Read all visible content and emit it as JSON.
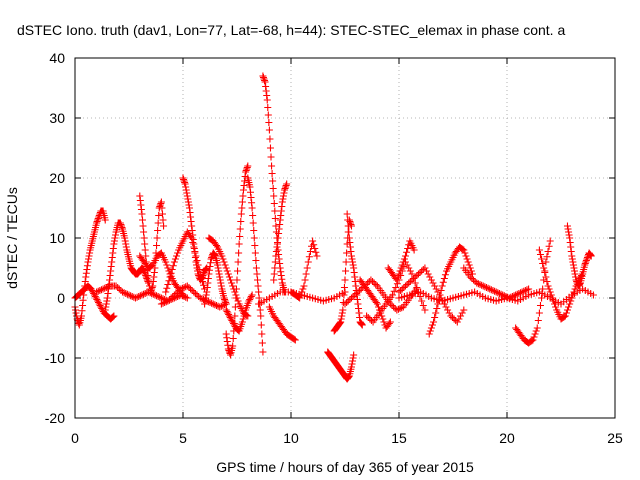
{
  "chart_data": {
    "type": "scatter",
    "title": "dSTEC Iono. truth (dav1, Lon=77, Lat=-68, h=44): STEC-STEC_elemax in phase cont. a",
    "xlabel": "GPS time / hours of day 365 of year 2015",
    "ylabel": "dSTEC  / TECUs",
    "xlim": [
      0,
      25
    ],
    "ylim": [
      -20,
      40
    ],
    "xticks": [
      0,
      5,
      10,
      15,
      20,
      25
    ],
    "yticks": [
      -20,
      -10,
      0,
      10,
      20,
      30,
      40
    ],
    "xtick_labels": [
      "0",
      "5",
      "10",
      "15",
      "20",
      "25"
    ],
    "ytick_labels": [
      "-20",
      "-10",
      "0",
      "10",
      "20",
      "30",
      "40"
    ],
    "grid": true,
    "marker": "+",
    "color": "#ff0000",
    "series": [
      {
        "x": [
          0.0,
          0.1,
          0.2,
          0.3,
          0.4,
          0.5,
          0.6,
          0.7,
          0.8,
          0.9,
          1.0,
          1.1,
          1.2,
          1.3,
          1.4
        ],
        "values": [
          -1.5,
          -3.5,
          -4.5,
          -3.0,
          0.5,
          3.5,
          6.0,
          8.0,
          9.5,
          11.0,
          12.5,
          13.5,
          14.5,
          14.5,
          13.0
        ]
      },
      {
        "x": [
          0.0,
          0.15,
          0.3,
          0.45,
          0.6,
          0.75,
          0.9,
          1.05,
          1.2,
          1.35,
          1.5,
          1.65,
          1.8
        ],
        "values": [
          0.0,
          0.5,
          1.0,
          1.5,
          2.0,
          1.5,
          0.5,
          -0.5,
          -1.5,
          -2.5,
          -3.0,
          -3.5,
          -3.0
        ]
      },
      {
        "x": [
          1.4,
          1.5,
          1.6,
          1.7,
          1.8,
          1.9,
          2.0,
          2.1,
          2.2,
          2.3,
          2.4,
          2.5,
          2.6,
          2.7,
          2.8,
          2.9,
          3.0,
          3.1,
          3.2,
          3.3,
          3.4
        ],
        "values": [
          -2.0,
          0.0,
          3.0,
          6.0,
          9.0,
          11.0,
          12.5,
          12.5,
          11.5,
          10.0,
          8.0,
          6.5,
          5.0,
          4.5,
          4.0,
          4.0,
          4.5,
          5.0,
          4.5,
          3.5,
          2.5
        ]
      },
      {
        "x": [
          1.0,
          1.3,
          1.6,
          1.9,
          2.2,
          2.5,
          2.8,
          3.1,
          3.4,
          3.7,
          4.0,
          4.3,
          4.6,
          4.9,
          5.2
        ],
        "values": [
          1.0,
          1.5,
          2.0,
          2.0,
          1.0,
          0.5,
          0.0,
          0.5,
          1.0,
          0.5,
          0.0,
          -0.5,
          0.0,
          0.5,
          0.0
        ]
      },
      {
        "x": [
          3.0,
          3.1,
          3.2,
          3.3,
          3.4,
          3.5,
          3.6,
          3.7,
          3.8,
          3.9,
          4.0,
          4.1
        ],
        "values": [
          17.0,
          14.0,
          10.0,
          6.0,
          3.0,
          1.0,
          2.0,
          5.0,
          10.0,
          15.0,
          16.0,
          12.0
        ]
      },
      {
        "x": [
          3.0,
          3.2,
          3.4,
          3.6,
          3.8,
          4.0,
          4.2,
          4.4,
          4.6,
          4.8,
          5.0
        ],
        "values": [
          7.0,
          6.0,
          5.0,
          5.5,
          7.0,
          7.5,
          6.0,
          4.0,
          2.5,
          1.5,
          0.5
        ]
      },
      {
        "x": [
          4.2,
          4.4,
          4.6,
          4.8,
          5.0,
          5.2,
          5.4,
          5.6,
          5.8,
          6.0
        ],
        "values": [
          1.0,
          3.5,
          6.0,
          8.0,
          9.5,
          11.0,
          10.0,
          7.0,
          4.0,
          1.5
        ]
      },
      {
        "x": [
          5.0,
          5.1,
          5.2,
          5.3,
          5.4,
          5.5,
          5.6,
          5.7,
          5.8,
          5.9,
          6.0,
          6.1
        ],
        "values": [
          20.0,
          19.0,
          17.0,
          15.0,
          12.0,
          9.0,
          6.0,
          4.0,
          3.0,
          3.5,
          4.5,
          5.0
        ]
      },
      {
        "x": [
          4.0,
          4.3,
          4.6,
          4.9,
          5.2,
          5.5,
          5.8,
          6.1,
          6.4,
          6.7,
          7.0
        ],
        "values": [
          -1.0,
          -0.5,
          0.5,
          1.5,
          2.0,
          1.0,
          0.0,
          -0.5,
          -1.0,
          -1.5,
          -1.0
        ]
      },
      {
        "x": [
          6.0,
          6.1,
          6.2,
          6.3,
          6.4,
          6.5,
          6.6,
          6.7,
          6.8,
          6.9,
          7.0
        ],
        "values": [
          -1.0,
          1.0,
          4.0,
          6.5,
          7.5,
          7.0,
          5.5,
          3.5,
          1.5,
          0.0,
          -1.0
        ]
      },
      {
        "x": [
          6.2,
          6.4,
          6.6,
          6.8,
          7.0,
          7.2,
          7.4,
          7.6,
          7.8,
          8.0
        ],
        "values": [
          10.0,
          9.5,
          8.5,
          7.0,
          5.0,
          3.0,
          1.0,
          -1.0,
          -2.5,
          -3.0
        ]
      },
      {
        "x": [
          7.0,
          7.1,
          7.2,
          7.3,
          7.4,
          7.5,
          7.6,
          7.7,
          7.8,
          7.9,
          8.0
        ],
        "values": [
          -6.0,
          -8.5,
          -9.5,
          -8.0,
          -3.0,
          3.0,
          9.0,
          14.0,
          18.0,
          21.0,
          22.0
        ]
      },
      {
        "x": [
          7.0,
          7.15,
          7.3,
          7.45,
          7.6,
          7.75,
          7.9,
          8.05,
          8.2
        ],
        "values": [
          -2.0,
          -3.0,
          -4.0,
          -5.0,
          -5.5,
          -4.0,
          -2.0,
          -0.5,
          0.5
        ]
      },
      {
        "x": [
          8.0,
          8.1,
          8.2,
          8.3,
          8.4,
          8.5,
          8.6,
          8.7
        ],
        "values": [
          20.0,
          18.5,
          15.0,
          10.0,
          5.0,
          1.0,
          -3.0,
          -9.0
        ]
      },
      {
        "x": [
          8.7,
          8.8,
          8.9,
          9.0,
          9.1,
          9.2,
          9.3,
          9.4,
          9.5,
          9.6,
          9.7
        ],
        "values": [
          37.0,
          36.0,
          33.0,
          28.0,
          22.0,
          17.0,
          12.0,
          8.0,
          5.0,
          2.5,
          1.0
        ]
      },
      {
        "x": [
          9.0,
          9.2,
          9.4,
          9.6,
          9.8,
          10.0,
          10.2
        ],
        "values": [
          -1.5,
          -3.0,
          -4.0,
          -5.0,
          -6.0,
          -6.5,
          -7.0
        ]
      },
      {
        "x": [
          9.2,
          9.3,
          9.4,
          9.5,
          9.6,
          9.7,
          9.8
        ],
        "values": [
          3.0,
          7.0,
          10.0,
          13.0,
          16.0,
          18.0,
          19.0
        ]
      },
      {
        "x": [
          10.0,
          10.2,
          10.4,
          10.6,
          10.8,
          11.0,
          11.2
        ],
        "values": [
          1.0,
          0.5,
          0.0,
          2.0,
          6.0,
          9.5,
          7.0
        ]
      },
      {
        "x": [
          8.5,
          9.0,
          9.5,
          10.0,
          10.5,
          11.0,
          11.5,
          12.0,
          12.5
        ],
        "values": [
          -1.0,
          0.0,
          1.0,
          1.0,
          0.5,
          0.0,
          -0.5,
          0.0,
          1.0
        ]
      },
      {
        "x": [
          11.7,
          11.8,
          11.9,
          12.0,
          12.1,
          12.2,
          12.3,
          12.4,
          12.5,
          12.6,
          12.7,
          12.8,
          12.9
        ],
        "values": [
          -9.0,
          -9.5,
          -10.0,
          -10.5,
          -11.0,
          -11.5,
          -12.0,
          -12.5,
          -13.0,
          -13.5,
          -13.0,
          -11.5,
          -9.5
        ]
      },
      {
        "x": [
          12.0,
          12.1,
          12.2,
          12.3,
          12.4,
          12.5,
          12.6,
          12.7,
          12.8
        ],
        "values": [
          -5.5,
          -5.0,
          -4.5,
          -4.0,
          -2.0,
          3.0,
          9.0,
          13.0,
          12.0
        ]
      },
      {
        "x": [
          12.6,
          12.7,
          12.8,
          12.9,
          13.0,
          13.1,
          13.2,
          13.3
        ],
        "values": [
          14.0,
          10.0,
          7.0,
          5.0,
          2.0,
          -1.0,
          -4.0,
          -4.5
        ]
      },
      {
        "x": [
          12.5,
          12.8,
          13.1,
          13.4,
          13.7,
          14.0,
          14.3,
          14.6,
          14.9,
          15.2,
          15.5,
          15.8
        ],
        "values": [
          -1.0,
          0.0,
          1.0,
          2.0,
          3.0,
          2.0,
          0.5,
          -1.0,
          -2.0,
          -1.5,
          0.0,
          1.5
        ]
      },
      {
        "x": [
          13.5,
          13.8,
          14.1,
          14.4,
          14.7,
          15.0,
          15.3,
          15.6,
          15.9,
          16.2
        ],
        "values": [
          -3.0,
          -4.0,
          -2.5,
          -1.0,
          0.5,
          3.0,
          6.0,
          4.0,
          1.0,
          -2.0
        ]
      },
      {
        "x": [
          15.0,
          15.3,
          15.6,
          15.9,
          16.2,
          16.5,
          16.8,
          17.1,
          17.4,
          17.7,
          18.0
        ],
        "values": [
          1.0,
          2.0,
          3.0,
          4.0,
          5.0,
          3.0,
          1.0,
          -1.0,
          -3.0,
          -4.0,
          -2.0
        ]
      },
      {
        "x": [
          16.4,
          16.6,
          16.8,
          17.0,
          17.2,
          17.4,
          17.6,
          17.8,
          18.0,
          18.2,
          18.4
        ],
        "values": [
          -6.0,
          -4.0,
          -1.0,
          2.0,
          4.5,
          6.0,
          7.5,
          8.5,
          8.0,
          6.0,
          4.0
        ]
      },
      {
        "x": [
          18.0,
          18.3,
          18.6,
          18.9,
          19.2,
          19.5,
          19.8,
          20.1,
          20.4,
          20.7,
          21.0
        ],
        "values": [
          5.0,
          3.5,
          2.5,
          2.0,
          1.5,
          1.0,
          0.5,
          0.0,
          0.5,
          1.0,
          1.5
        ]
      },
      {
        "x": [
          15.0,
          15.5,
          16.0,
          16.5,
          17.0,
          17.5,
          18.0,
          18.5,
          19.0,
          19.5,
          20.0
        ],
        "values": [
          0.0,
          0.5,
          1.0,
          0.0,
          -0.5,
          0.0,
          0.5,
          1.0,
          0.0,
          -0.5,
          0.0
        ]
      },
      {
        "x": [
          20.4,
          20.6,
          20.8,
          21.0,
          21.2,
          21.4,
          21.6,
          21.8,
          22.0
        ],
        "values": [
          -5.0,
          -6.0,
          -7.0,
          -7.5,
          -7.0,
          -5.0,
          0.0,
          6.0,
          9.5
        ]
      },
      {
        "x": [
          21.5,
          21.7,
          21.9,
          22.1,
          22.3,
          22.5,
          22.7,
          22.9,
          23.1,
          23.3,
          23.5
        ],
        "values": [
          8.0,
          5.0,
          2.0,
          0.0,
          -2.0,
          -3.5,
          -3.0,
          -1.0,
          1.0,
          3.0,
          4.0
        ]
      },
      {
        "x": [
          22.8,
          22.9,
          23.0,
          23.1,
          23.2,
          23.3,
          23.4,
          23.5,
          23.6,
          23.7,
          23.8,
          23.9
        ],
        "values": [
          12.0,
          10.0,
          7.0,
          5.0,
          3.0,
          2.0,
          2.5,
          4.0,
          5.5,
          6.5,
          7.5,
          7.0
        ]
      },
      {
        "x": [
          20.0,
          20.5,
          21.0,
          21.5,
          22.0,
          22.5,
          23.0,
          23.5,
          24.0
        ],
        "values": [
          0.0,
          -0.5,
          0.5,
          1.0,
          0.0,
          -1.0,
          0.5,
          1.5,
          0.5
        ]
      },
      {
        "x": [
          13.2,
          13.4,
          13.6,
          13.8,
          14.0,
          14.2,
          14.4,
          14.6
        ],
        "values": [
          3.0,
          2.0,
          1.0,
          0.0,
          -1.0,
          -3.0,
          -5.0,
          -4.0
        ]
      },
      {
        "x": [
          14.5,
          14.7,
          14.9,
          15.1,
          15.3,
          15.5,
          15.7
        ],
        "values": [
          5.0,
          4.0,
          3.0,
          5.0,
          7.0,
          9.5,
          8.0
        ]
      }
    ]
  }
}
